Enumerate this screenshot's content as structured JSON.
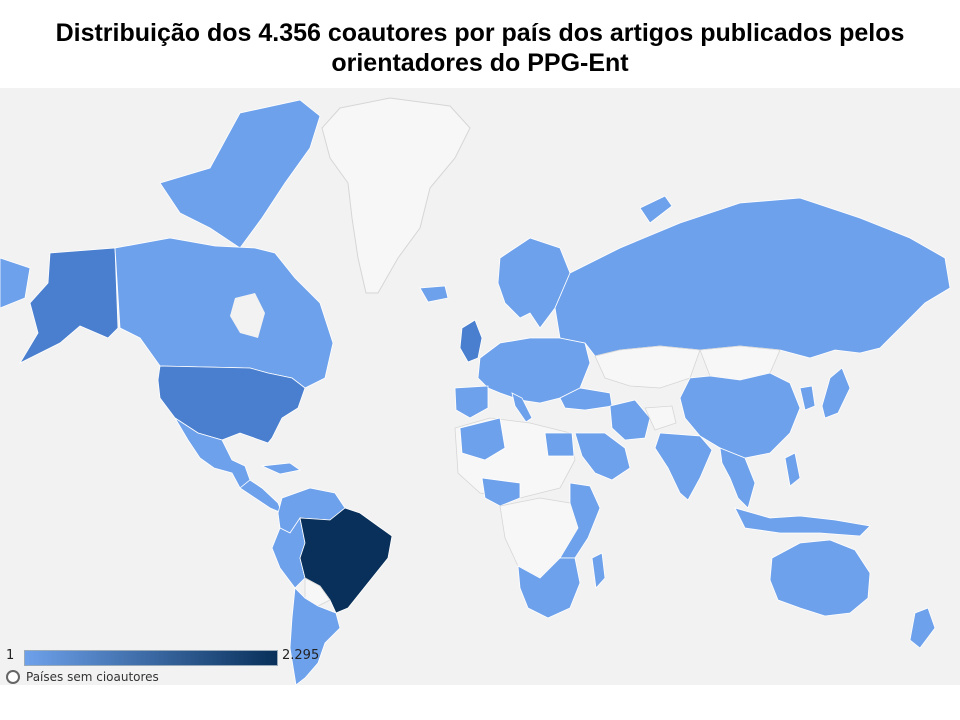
{
  "title": {
    "line1": "Distribuição dos 4.356 coautores por país dos artigos publicados pelos",
    "line2": "orientadores do PPG-Ent",
    "line3": ""
  },
  "colors": {
    "ocean": "#f2f2f2",
    "no_data": "#f7f7f7",
    "low": "#6ea1eb",
    "mid": "#4a7fcf",
    "high": "#08305a"
  },
  "map_data": {
    "type": "choropleth",
    "scale": {
      "min_label": "1",
      "max_label": "2.295",
      "min_color": "#6ea1eb",
      "max_color": "#08305a"
    },
    "no_data_label": "Países sem cioautores",
    "highlight": [
      {
        "region": "Brazil",
        "level": "max"
      },
      {
        "region": "United States",
        "level": "high"
      },
      {
        "region": "Alaska",
        "level": "high"
      }
    ]
  },
  "legend": {
    "min": "1",
    "max": "2.295",
    "no_data_label": "Países sem cioautores"
  }
}
